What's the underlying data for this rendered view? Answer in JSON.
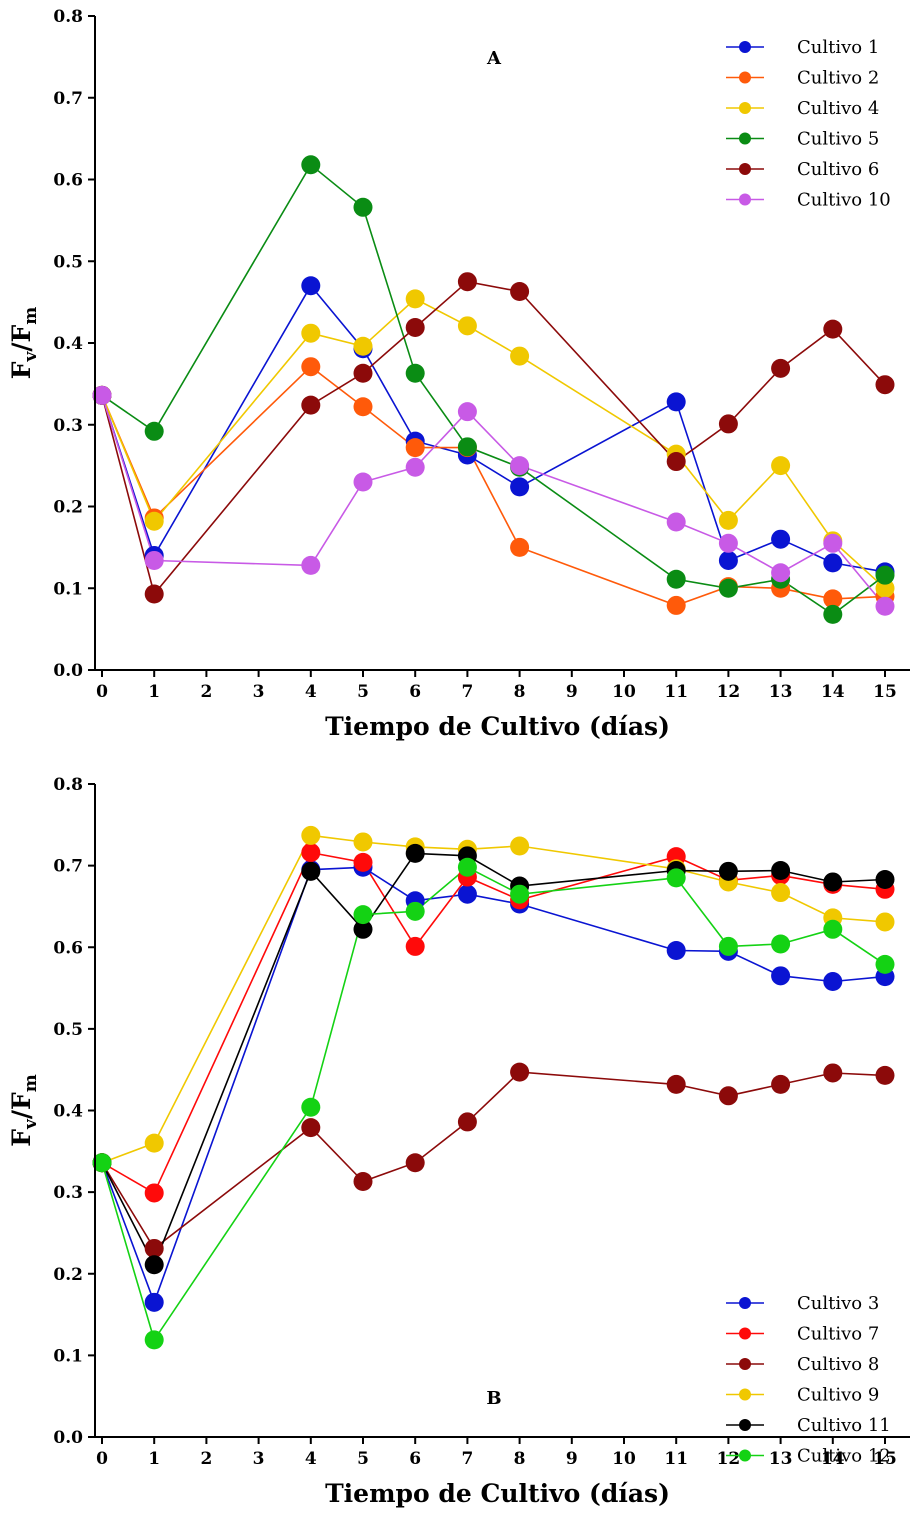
{
  "chart_data": [
    {
      "type": "line",
      "panel_label": "A",
      "xlabel": "Tiempo de Cultivo (días)",
      "ylabel": "Fv/Fm",
      "ylabel_main": "F",
      "ylabel_sub1": "v",
      "ylabel_sep": "/F",
      "ylabel_sub2": "m",
      "x_categories": [
        "0",
        "1",
        "2",
        "3",
        "4",
        "5",
        "6",
        "7",
        "8",
        "9",
        "10",
        "11",
        "12",
        "13",
        "14",
        "15"
      ],
      "ylim": [
        0,
        0.8
      ],
      "yticks": [
        "0.0",
        "0.1",
        "0.2",
        "0.3",
        "0.4",
        "0.5",
        "0.6",
        "0.7",
        "0.8"
      ],
      "legend_position": "top-right",
      "series": [
        {
          "name": "Cultivo 1",
          "color": "#0a14d2",
          "x": [
            0,
            1,
            4,
            5,
            6,
            7,
            8,
            11,
            12,
            13,
            14,
            15
          ],
          "y": [
            0.336,
            0.14,
            0.47,
            0.393,
            0.28,
            0.263,
            0.224,
            0.328,
            0.134,
            0.16,
            0.131,
            0.12
          ]
        },
        {
          "name": "Cultivo 2",
          "color": "#ff5a0a",
          "x": [
            0,
            1,
            4,
            5,
            6,
            7,
            8,
            11,
            12,
            13,
            14,
            15
          ],
          "y": [
            0.336,
            0.186,
            0.371,
            0.322,
            0.272,
            0.272,
            0.15,
            0.079,
            0.102,
            0.1,
            0.087,
            0.09
          ]
        },
        {
          "name": "Cultivo 4",
          "color": "#f0c800",
          "x": [
            0,
            1,
            4,
            5,
            6,
            7,
            8,
            11,
            12,
            13,
            14,
            15
          ],
          "y": [
            0.336,
            0.182,
            0.412,
            0.396,
            0.454,
            0.421,
            0.384,
            0.264,
            0.183,
            0.25,
            0.158,
            0.1
          ]
        },
        {
          "name": "Cultivo 5",
          "color": "#0a8c14",
          "x": [
            0,
            1,
            4,
            5,
            6,
            7,
            8,
            11,
            12,
            13,
            14,
            15
          ],
          "y": [
            0.336,
            0.292,
            0.618,
            0.566,
            0.363,
            0.273,
            0.248,
            0.111,
            0.1,
            0.111,
            0.068,
            0.116
          ]
        },
        {
          "name": "Cultivo 6",
          "color": "#8c0a0a",
          "x": [
            0,
            1,
            4,
            5,
            6,
            7,
            8,
            11,
            12,
            13,
            14,
            15
          ],
          "y": [
            0.336,
            0.093,
            0.324,
            0.363,
            0.419,
            0.475,
            0.463,
            0.255,
            0.301,
            0.369,
            0.417,
            0.349
          ]
        },
        {
          "name": "Cultivo 10",
          "color": "#c85ae6",
          "x": [
            0,
            1,
            4,
            5,
            6,
            7,
            8,
            11,
            12,
            13,
            14,
            15
          ],
          "y": [
            0.336,
            0.134,
            0.128,
            0.23,
            0.248,
            0.316,
            0.25,
            0.181,
            0.155,
            0.119,
            0.155,
            0.078
          ]
        }
      ]
    },
    {
      "type": "line",
      "panel_label": "B",
      "xlabel": "Tiempo de Cultivo (días)",
      "ylabel": "Fv/Fm",
      "ylabel_main": "F",
      "ylabel_sub1": "v",
      "ylabel_sep": "/F",
      "ylabel_sub2": "m",
      "x_categories": [
        "0",
        "1",
        "2",
        "3",
        "4",
        "5",
        "6",
        "7",
        "8",
        "9",
        "10",
        "11",
        "12",
        "13",
        "14",
        "15"
      ],
      "ylim": [
        0,
        0.8
      ],
      "yticks": [
        "0.0",
        "0.1",
        "0.2",
        "0.3",
        "0.4",
        "0.5",
        "0.6",
        "0.7",
        "0.8"
      ],
      "legend_position": "bottom-right",
      "series": [
        {
          "name": "Cultivo 3",
          "color": "#0a14d2",
          "x": [
            0,
            1,
            4,
            5,
            6,
            7,
            8,
            11,
            12,
            13,
            14,
            15
          ],
          "y": [
            0.336,
            0.165,
            0.695,
            0.698,
            0.657,
            0.665,
            0.653,
            0.596,
            0.595,
            0.565,
            0.558,
            0.564
          ]
        },
        {
          "name": "Cultivo 7",
          "color": "#ff0a0a",
          "x": [
            0,
            1,
            4,
            5,
            6,
            7,
            8,
            11,
            12,
            13,
            14,
            15
          ],
          "y": [
            0.336,
            0.299,
            0.716,
            0.704,
            0.601,
            0.686,
            0.658,
            0.711,
            0.682,
            0.688,
            0.677,
            0.671
          ]
        },
        {
          "name": "Cultivo 8",
          "color": "#8c0a0a",
          "x": [
            0,
            1,
            4,
            5,
            6,
            7,
            8,
            11,
            12,
            13,
            14,
            15
          ],
          "y": [
            0.336,
            0.231,
            0.379,
            0.313,
            0.336,
            0.386,
            0.447,
            0.432,
            0.418,
            0.432,
            0.446,
            0.443
          ]
        },
        {
          "name": "Cultivo 9",
          "color": "#f0c800",
          "x": [
            0,
            1,
            4,
            5,
            6,
            7,
            8,
            11,
            12,
            13,
            14,
            15
          ],
          "y": [
            0.336,
            0.36,
            0.737,
            0.729,
            0.723,
            0.72,
            0.724,
            0.696,
            0.68,
            0.667,
            0.636,
            0.631
          ]
        },
        {
          "name": "Cultivo 11",
          "color": "#000000",
          "x": [
            0,
            1,
            4,
            5,
            6,
            7,
            8,
            11,
            12,
            13,
            14,
            15
          ],
          "y": [
            0.336,
            0.211,
            0.693,
            0.622,
            0.715,
            0.712,
            0.675,
            0.694,
            0.693,
            0.694,
            0.68,
            0.683
          ]
        },
        {
          "name": "Cultivo 12",
          "color": "#14d214",
          "x": [
            0,
            1,
            4,
            5,
            6,
            7,
            8,
            11,
            12,
            13,
            14,
            15
          ],
          "y": [
            0.336,
            0.119,
            0.404,
            0.64,
            0.644,
            0.698,
            0.665,
            0.685,
            0.601,
            0.604,
            0.622,
            0.579
          ]
        }
      ]
    }
  ]
}
